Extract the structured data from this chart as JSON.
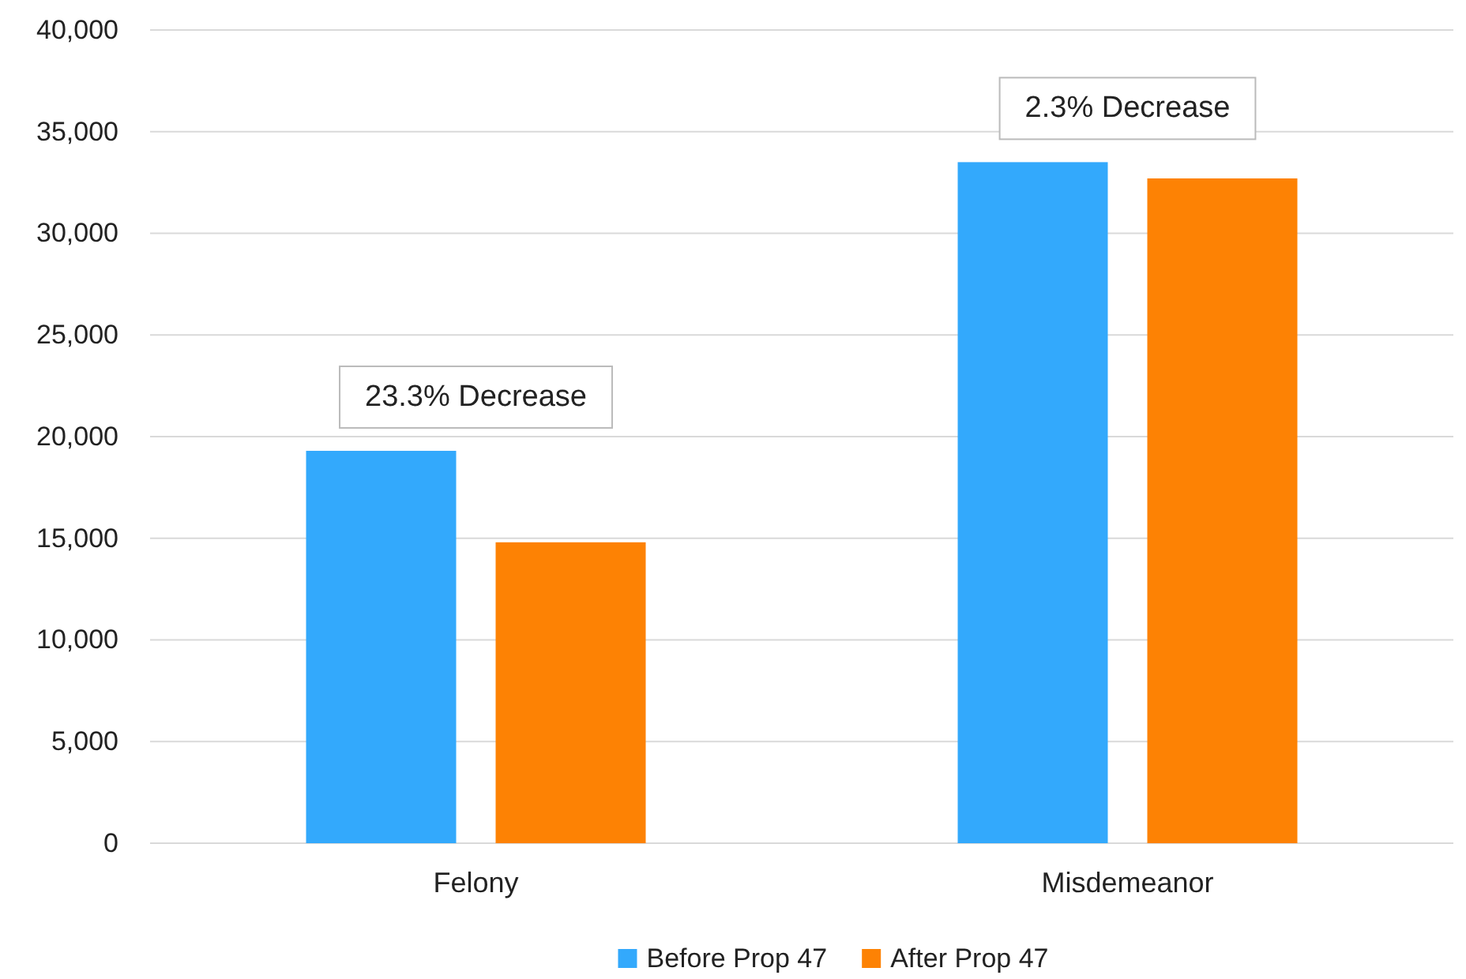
{
  "chart_data": {
    "type": "bar",
    "categories": [
      "Felony",
      "Misdemeanor"
    ],
    "series": [
      {
        "name": "Before Prop 47",
        "color": "#33a9fc",
        "values": [
          19300,
          33500
        ]
      },
      {
        "name": "After Prop 47",
        "color": "#fd8204",
        "values": [
          14800,
          32700
        ]
      }
    ],
    "ylim": [
      0,
      40000
    ],
    "yticks": [
      {
        "value": 0,
        "label": "0"
      },
      {
        "value": 5000,
        "label": "5,000"
      },
      {
        "value": 10000,
        "label": "10,000"
      },
      {
        "value": 15000,
        "label": "15,000"
      },
      {
        "value": 20000,
        "label": "20,000"
      },
      {
        "value": 25000,
        "label": "25,000"
      },
      {
        "value": 30000,
        "label": "30,000"
      },
      {
        "value": 35000,
        "label": "35,000"
      },
      {
        "value": 40000,
        "label": "40,000"
      }
    ],
    "grid": "y",
    "legend": "bottom",
    "annotations": [
      "23.3% Decrease",
      "2.3% Decrease"
    ]
  }
}
